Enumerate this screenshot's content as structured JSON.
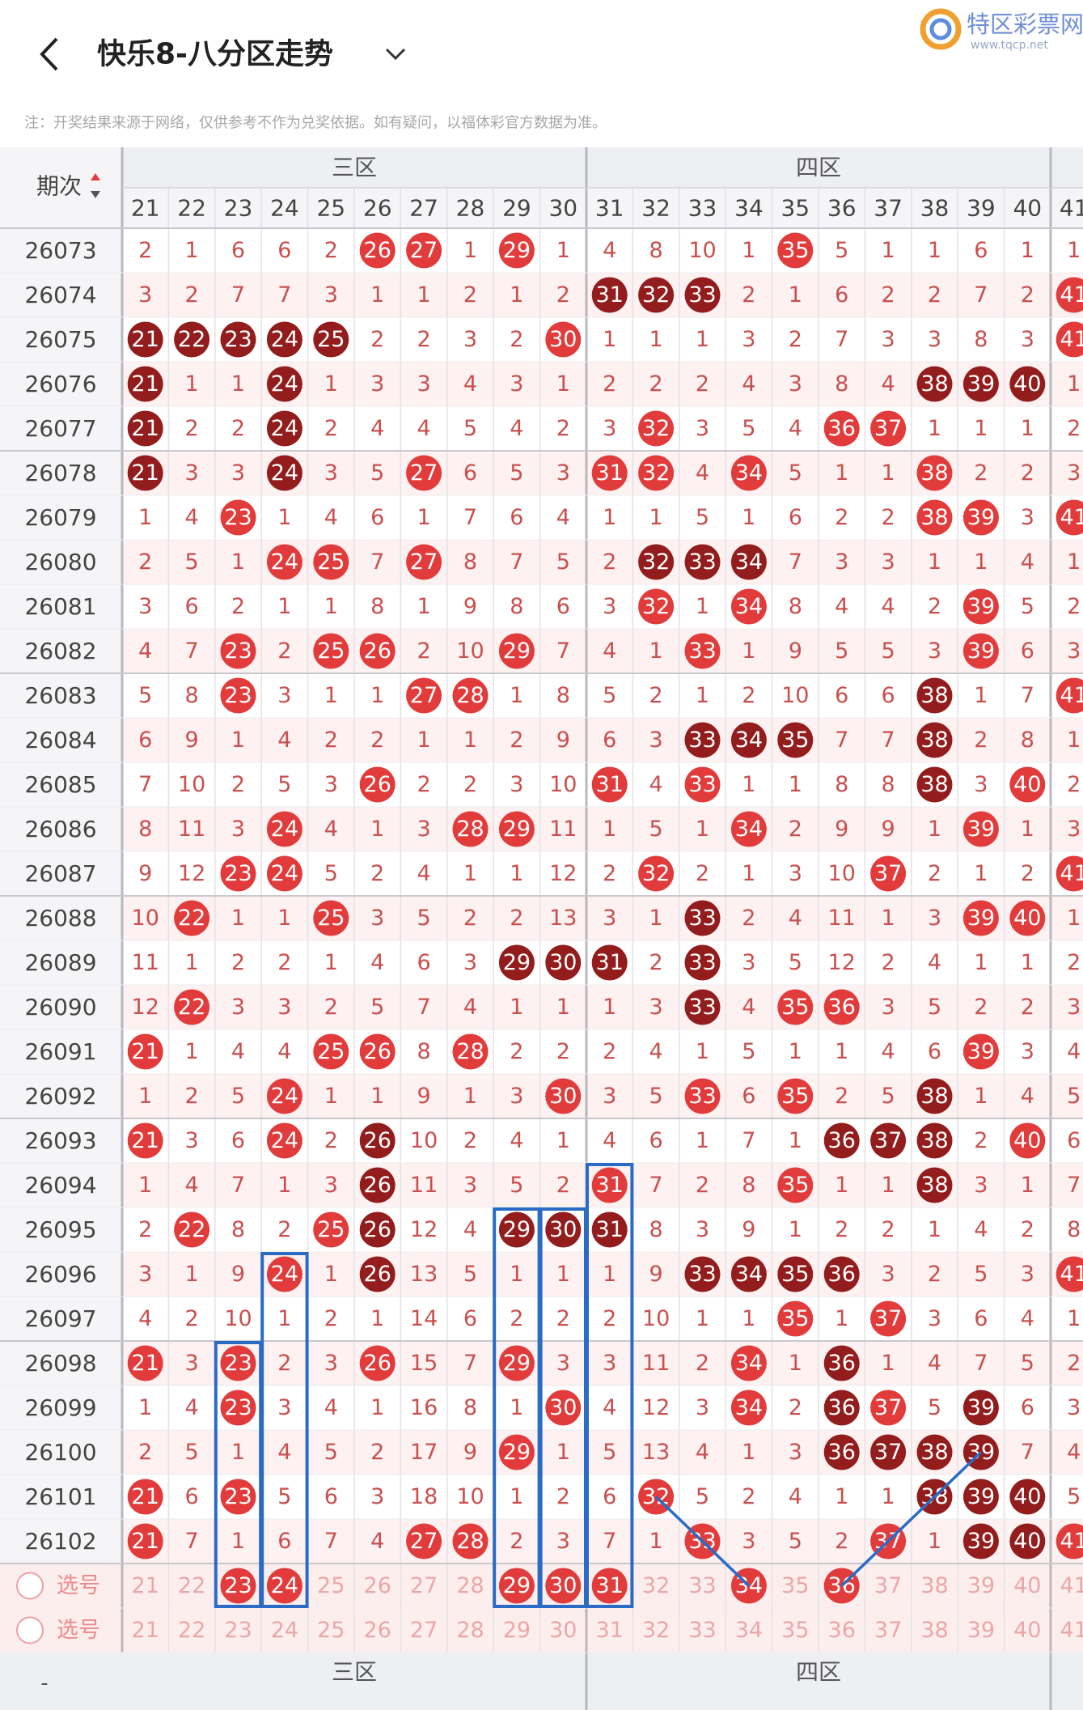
{
  "header": {
    "title": "快乐8-八分区走势",
    "logo_name": "特区彩票网",
    "logo_url": "www.tqcp.net"
  },
  "note": "注：开奖结果来源于网络，仅供参考不作为兑奖依据。如有疑问，以福体彩官方数据为准。",
  "table": {
    "issue_header": "期次",
    "zones": [
      "三区",
      "四区"
    ],
    "columns": [
      "21",
      "22",
      "23",
      "24",
      "25",
      "26",
      "27",
      "28",
      "29",
      "30",
      "31",
      "32",
      "33",
      "34",
      "35",
      "36",
      "37",
      "38",
      "39",
      "40",
      "41"
    ],
    "rows": [
      {
        "issue": "26073",
        "cells": [
          2,
          1,
          6,
          6,
          2,
          26,
          27,
          1,
          29,
          1,
          4,
          8,
          10,
          1,
          35,
          5,
          1,
          1,
          6,
          1,
          1
        ],
        "dark_balls": []
      },
      {
        "issue": "26074",
        "cells": [
          3,
          2,
          7,
          7,
          3,
          1,
          1,
          2,
          1,
          2,
          31,
          32,
          33,
          2,
          1,
          6,
          2,
          2,
          7,
          2,
          41
        ],
        "dark_balls": [
          31,
          32,
          33
        ]
      },
      {
        "issue": "26075",
        "cells": [
          21,
          22,
          23,
          24,
          25,
          2,
          2,
          3,
          2,
          30,
          1,
          1,
          1,
          3,
          2,
          7,
          3,
          3,
          8,
          3,
          41
        ],
        "dark_balls": [
          21,
          22,
          23,
          24,
          25
        ]
      },
      {
        "issue": "26076",
        "cells": [
          21,
          1,
          1,
          24,
          1,
          3,
          3,
          4,
          3,
          1,
          2,
          2,
          2,
          4,
          3,
          8,
          4,
          38,
          39,
          40,
          1
        ],
        "dark_balls": [
          21,
          24,
          38,
          39,
          40
        ]
      },
      {
        "issue": "26077",
        "cells": [
          21,
          2,
          2,
          24,
          2,
          4,
          4,
          5,
          4,
          2,
          3,
          32,
          3,
          5,
          4,
          36,
          37,
          1,
          1,
          1,
          2
        ],
        "dark_balls": [
          21,
          24
        ]
      },
      {
        "issue": "26078",
        "cells": [
          21,
          3,
          3,
          24,
          3,
          5,
          27,
          6,
          5,
          3,
          31,
          32,
          4,
          34,
          5,
          1,
          1,
          38,
          2,
          2,
          3
        ],
        "dark_balls": [
          21,
          24
        ]
      },
      {
        "issue": "26079",
        "cells": [
          1,
          4,
          23,
          1,
          4,
          6,
          1,
          7,
          6,
          4,
          1,
          1,
          5,
          1,
          6,
          2,
          2,
          38,
          39,
          3,
          41
        ],
        "dark_balls": []
      },
      {
        "issue": "26080",
        "cells": [
          2,
          5,
          1,
          24,
          25,
          7,
          27,
          8,
          7,
          5,
          2,
          32,
          33,
          34,
          7,
          3,
          3,
          1,
          1,
          4,
          1
        ],
        "dark_balls": [
          32,
          33,
          34
        ]
      },
      {
        "issue": "26081",
        "cells": [
          3,
          6,
          2,
          1,
          1,
          8,
          1,
          9,
          8,
          6,
          3,
          32,
          1,
          34,
          8,
          4,
          4,
          2,
          39,
          5,
          2
        ],
        "dark_balls": []
      },
      {
        "issue": "26082",
        "cells": [
          4,
          7,
          23,
          2,
          25,
          26,
          2,
          10,
          29,
          7,
          4,
          1,
          33,
          1,
          9,
          5,
          5,
          3,
          39,
          6,
          3
        ],
        "dark_balls": []
      },
      {
        "issue": "26083",
        "cells": [
          5,
          8,
          23,
          3,
          1,
          1,
          27,
          28,
          1,
          8,
          5,
          2,
          1,
          2,
          10,
          6,
          6,
          38,
          1,
          7,
          41
        ],
        "dark_balls": [
          38
        ]
      },
      {
        "issue": "26084",
        "cells": [
          6,
          9,
          1,
          4,
          2,
          2,
          1,
          1,
          2,
          9,
          6,
          3,
          33,
          34,
          35,
          7,
          7,
          38,
          2,
          8,
          1
        ],
        "dark_balls": [
          33,
          34,
          35,
          38
        ]
      },
      {
        "issue": "26085",
        "cells": [
          7,
          10,
          2,
          5,
          3,
          26,
          2,
          2,
          3,
          10,
          31,
          4,
          33,
          1,
          1,
          8,
          8,
          38,
          3,
          40,
          2
        ],
        "dark_balls": [
          38
        ]
      },
      {
        "issue": "26086",
        "cells": [
          8,
          11,
          3,
          24,
          4,
          1,
          3,
          28,
          29,
          11,
          1,
          5,
          1,
          34,
          2,
          9,
          9,
          1,
          39,
          1,
          3
        ],
        "dark_balls": []
      },
      {
        "issue": "26087",
        "cells": [
          9,
          12,
          23,
          24,
          5,
          2,
          4,
          1,
          1,
          12,
          2,
          32,
          2,
          1,
          3,
          10,
          37,
          2,
          1,
          2,
          41
        ],
        "dark_balls": []
      },
      {
        "issue": "26088",
        "cells": [
          10,
          22,
          1,
          1,
          25,
          3,
          5,
          2,
          2,
          13,
          3,
          1,
          33,
          2,
          4,
          11,
          1,
          3,
          39,
          40,
          1
        ],
        "dark_balls": [
          33
        ]
      },
      {
        "issue": "26089",
        "cells": [
          11,
          1,
          2,
          2,
          1,
          4,
          6,
          3,
          29,
          30,
          31,
          2,
          33,
          3,
          5,
          12,
          2,
          4,
          1,
          1,
          2
        ],
        "dark_balls": [
          29,
          30,
          31,
          33
        ]
      },
      {
        "issue": "26090",
        "cells": [
          12,
          22,
          3,
          3,
          2,
          5,
          7,
          4,
          1,
          1,
          1,
          3,
          33,
          4,
          35,
          36,
          3,
          5,
          2,
          2,
          3
        ],
        "dark_balls": [
          33
        ]
      },
      {
        "issue": "26091",
        "cells": [
          21,
          1,
          4,
          4,
          25,
          26,
          8,
          28,
          2,
          2,
          2,
          4,
          1,
          5,
          1,
          1,
          4,
          6,
          39,
          3,
          4
        ],
        "dark_balls": []
      },
      {
        "issue": "26092",
        "cells": [
          1,
          2,
          5,
          24,
          1,
          1,
          9,
          1,
          3,
          30,
          3,
          5,
          33,
          6,
          35,
          2,
          5,
          38,
          1,
          4,
          5
        ],
        "dark_balls": [
          38
        ]
      },
      {
        "issue": "26093",
        "cells": [
          21,
          3,
          6,
          24,
          2,
          26,
          10,
          2,
          4,
          1,
          4,
          6,
          1,
          7,
          1,
          36,
          37,
          38,
          2,
          40,
          6
        ],
        "dark_balls": [
          26,
          36,
          37,
          38
        ]
      },
      {
        "issue": "26094",
        "cells": [
          1,
          4,
          7,
          1,
          3,
          26,
          11,
          3,
          5,
          2,
          31,
          7,
          2,
          8,
          35,
          1,
          1,
          38,
          3,
          1,
          7
        ],
        "dark_balls": [
          26,
          38
        ]
      },
      {
        "issue": "26095",
        "cells": [
          2,
          22,
          8,
          2,
          25,
          26,
          12,
          4,
          29,
          30,
          31,
          8,
          3,
          9,
          1,
          2,
          2,
          1,
          4,
          2,
          8
        ],
        "dark_balls": [
          26,
          29,
          30,
          31
        ]
      },
      {
        "issue": "26096",
        "cells": [
          3,
          1,
          9,
          24,
          1,
          26,
          13,
          5,
          1,
          1,
          1,
          9,
          33,
          34,
          35,
          36,
          3,
          2,
          5,
          3,
          41
        ],
        "dark_balls": [
          26,
          33,
          34,
          35,
          36
        ]
      },
      {
        "issue": "26097",
        "cells": [
          4,
          2,
          10,
          1,
          2,
          1,
          14,
          6,
          2,
          2,
          2,
          10,
          1,
          1,
          35,
          1,
          37,
          3,
          6,
          4,
          1
        ],
        "dark_balls": []
      },
      {
        "issue": "26098",
        "cells": [
          21,
          3,
          23,
          2,
          3,
          26,
          15,
          7,
          29,
          3,
          3,
          11,
          2,
          34,
          1,
          36,
          1,
          4,
          7,
          5,
          2
        ],
        "dark_balls": [
          36
        ]
      },
      {
        "issue": "26099",
        "cells": [
          1,
          4,
          23,
          3,
          4,
          1,
          16,
          8,
          1,
          30,
          4,
          12,
          3,
          34,
          2,
          36,
          37,
          5,
          39,
          6,
          3
        ],
        "dark_balls": [
          36,
          39
        ]
      },
      {
        "issue": "26100",
        "cells": [
          2,
          5,
          1,
          4,
          5,
          2,
          17,
          9,
          29,
          1,
          5,
          13,
          4,
          1,
          3,
          36,
          37,
          38,
          39,
          7,
          4
        ],
        "dark_balls": [
          36,
          37,
          38,
          39
        ]
      },
      {
        "issue": "26101",
        "cells": [
          21,
          6,
          23,
          5,
          6,
          3,
          18,
          10,
          1,
          2,
          6,
          32,
          5,
          2,
          4,
          1,
          1,
          38,
          39,
          40,
          5
        ],
        "dark_balls": [
          38,
          39,
          40
        ]
      },
      {
        "issue": "26102",
        "cells": [
          21,
          7,
          1,
          6,
          7,
          4,
          27,
          28,
          2,
          3,
          7,
          1,
          33,
          3,
          5,
          2,
          37,
          1,
          39,
          40,
          41
        ],
        "dark_balls": [
          39,
          40
        ]
      }
    ],
    "select_rows": [
      {
        "label": "选号",
        "selected": [
          23,
          24,
          29,
          30,
          31,
          34,
          36
        ]
      },
      {
        "label": "选号",
        "selected": []
      }
    ],
    "footer_issue": "-",
    "footer_zones": [
      "三区",
      "四区"
    ]
  },
  "colors": {
    "ball": "#e23b3b",
    "dark_ball": "#931c1c",
    "miss": "#c9504e",
    "box": "#2a6bc6"
  }
}
